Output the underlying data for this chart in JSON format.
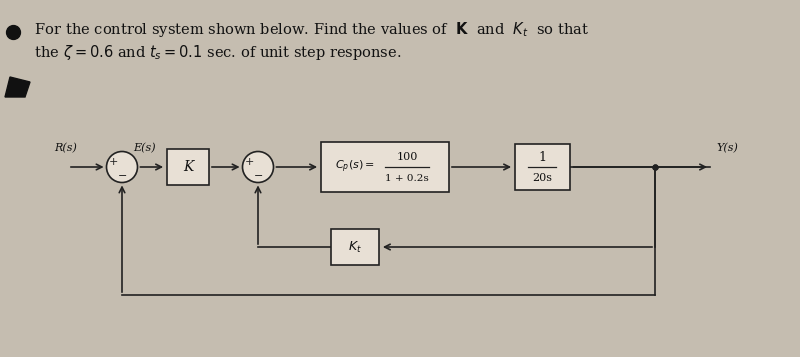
{
  "bg_color": "#c5bdb0",
  "title_line1": " For the control system shown below. Find the values of  $\\mathbf{K}$  and  $K_t$  so that",
  "title_line2": " the $\\zeta = 0.6$ and $t_s = 0.1$ sec. of unit step response.",
  "title_fontsize": 10.5,
  "label_R": "R(s)",
  "label_E": "E(s)",
  "label_Y": "Y(s)",
  "label_K": "K",
  "label_Kt": "$K_t$",
  "label_Cp_top": "100",
  "label_Cp_bot": "1 + 0.2s",
  "label_Cp_pre": "$C_p(s)=$",
  "label_plant_top": "1",
  "label_plant_bot": "20s",
  "circle_color": "#e8e0d5",
  "box_color": "#e8e0d5",
  "line_color": "#222222",
  "text_color": "#111111",
  "lw": 1.2
}
